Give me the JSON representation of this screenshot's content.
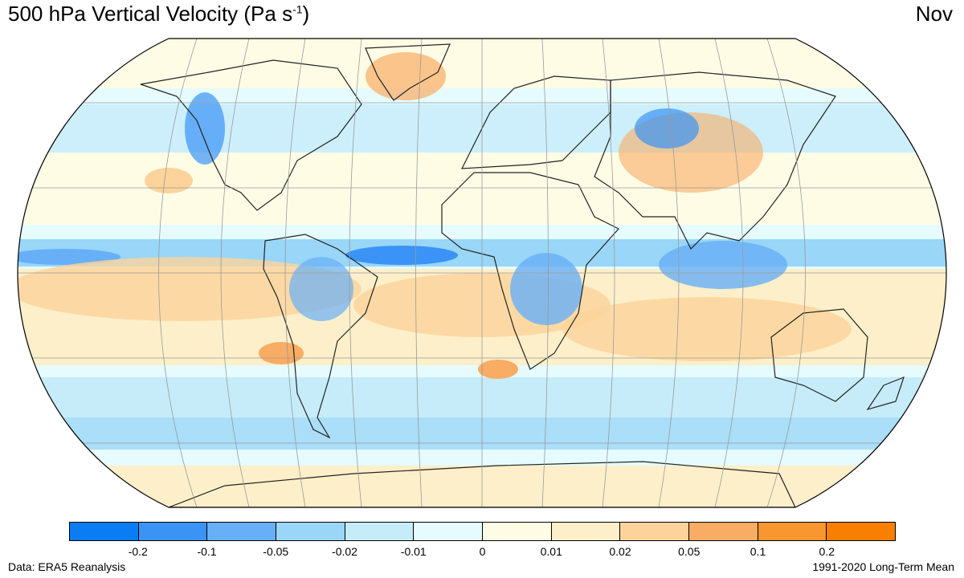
{
  "title": {
    "main": "500 hPa Vertical Velocity (Pa s",
    "superscript": "-1",
    "close": ")"
  },
  "month": "Nov",
  "footer": {
    "source": "Data: ERA5 Reanalysis",
    "period": "1991-2020 Long-Term Mean"
  },
  "legend": {
    "colors": [
      "#0a7df5",
      "#3a93f5",
      "#67aff6",
      "#99d6f7",
      "#c6ecfa",
      "#e5fbfe",
      "#fffce6",
      "#fdefc9",
      "#fbd39b",
      "#f9ac63",
      "#f8962f",
      "#f87f00"
    ],
    "ticks": [
      "-0.2",
      "-0.1",
      "-0.05",
      "-0.02",
      "-0.01",
      "0",
      "0.01",
      "0.02",
      "0.05",
      "0.1",
      "0.2"
    ]
  },
  "map": {
    "projection": "robinson",
    "ocean_color": "#e5fbfe",
    "land_outline": "#222222",
    "grid_color": "#9a9a9a"
  }
}
